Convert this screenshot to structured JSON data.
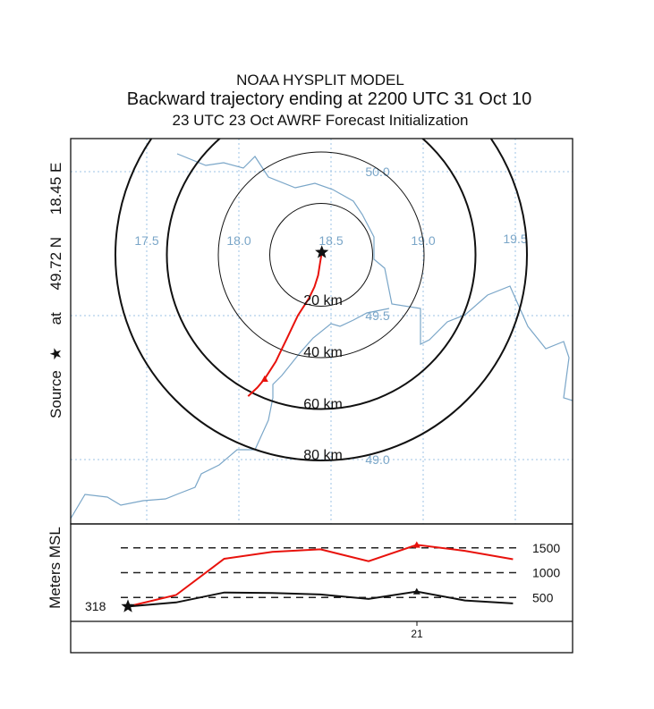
{
  "titles": {
    "line1": "NOAA HYSPLIT MODEL",
    "line2": "Backward trajectory ending at 2200 UTC 31 Oct 10",
    "line3": "23 UTC 23 Oct    AWRF  Forecast Initialization"
  },
  "source_label": {
    "prefix": "Source",
    "star": "★",
    "at": "at",
    "lat": "49.72 N",
    "lon": "18.45 E"
  },
  "colors": {
    "trajectory_horizontal": "#e8120c",
    "trajectory_vertical_top": "#e8120c",
    "trajectory_vertical_bottom": "#111111",
    "map_lines": "#7aa6c8",
    "grid": "#9ec3e6"
  },
  "chart_data": [
    {
      "type": "line",
      "panel": "map",
      "lon_labels": [
        "17.5",
        "18.0",
        "18.5",
        "19.0",
        "19.5"
      ],
      "lon_values": [
        17.5,
        18.0,
        18.5,
        19.0,
        19.5
      ],
      "lat_labels": [
        "50.0",
        "49.5",
        "49.0"
      ],
      "lat_values": [
        50.0,
        49.5,
        49.0
      ],
      "source": {
        "lat": 49.72,
        "lon": 18.45
      },
      "range_rings_km": [
        20,
        40,
        60,
        80
      ],
      "range_ring_labels": [
        "20 km",
        "40 km",
        "60 km",
        "80 km"
      ],
      "trajectory": {
        "lat": [
          49.72,
          49.68,
          49.64,
          49.6,
          49.56,
          49.53,
          49.5,
          49.46,
          49.42,
          49.38,
          49.34,
          49.31,
          49.28,
          49.25,
          49.22
        ],
        "lon": [
          18.45,
          18.44,
          18.43,
          18.41,
          18.38,
          18.35,
          18.32,
          18.29,
          18.26,
          18.23,
          18.2,
          18.17,
          18.14,
          18.1,
          18.05
        ]
      },
      "trajectory_marker_index": 12
    },
    {
      "type": "line",
      "panel": "height",
      "ylabel": "Meters MSL",
      "y_ticks": [
        1500,
        1000,
        500
      ],
      "y_tick_labels": [
        "1500",
        "1000",
        "500"
      ],
      "start_label": "318",
      "x_tick_label": "21",
      "series": [
        {
          "values": [
            318,
            550,
            1280,
            1420,
            1470,
            1230,
            1560,
            1440,
            1270
          ],
          "marker_index": 6
        },
        {
          "values": [
            318,
            400,
            600,
            590,
            560,
            470,
            620,
            440,
            380
          ],
          "marker_index": 6
        }
      ]
    }
  ]
}
